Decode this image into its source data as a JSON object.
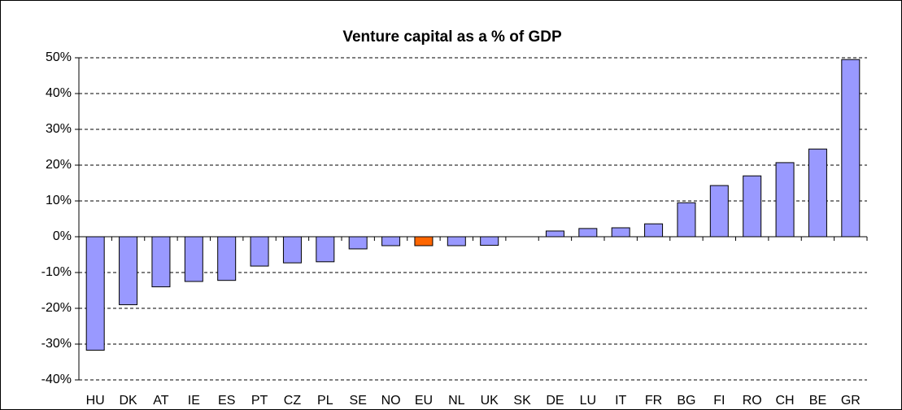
{
  "chart_data": {
    "type": "bar",
    "title": "Venture capital as a % of GDP",
    "categories": [
      "HU",
      "DK",
      "AT",
      "IE",
      "ES",
      "PT",
      "CZ",
      "PL",
      "SE",
      "NO",
      "EU",
      "NL",
      "UK",
      "SK",
      "DE",
      "LU",
      "IT",
      "FR",
      "BG",
      "FI",
      "RO",
      "CH",
      "BE",
      "GR"
    ],
    "values": [
      -31.7,
      -19,
      -14,
      -12.5,
      -12.2,
      -8.2,
      -7.3,
      -7,
      -3.4,
      -2.5,
      -2.5,
      -2.5,
      -2.4,
      0,
      1.6,
      2.3,
      2.5,
      3.6,
      9.5,
      14.3,
      17,
      20.7,
      24.5,
      49.5
    ],
    "colors": [
      "#9999ff",
      "#9999ff",
      "#9999ff",
      "#9999ff",
      "#9999ff",
      "#9999ff",
      "#9999ff",
      "#9999ff",
      "#9999ff",
      "#9999ff",
      "#ff6600",
      "#9999ff",
      "#9999ff",
      "#9999ff",
      "#9999ff",
      "#9999ff",
      "#9999ff",
      "#9999ff",
      "#9999ff",
      "#9999ff",
      "#9999ff",
      "#9999ff",
      "#9999ff",
      "#9999ff"
    ],
    "ylim": [
      -40,
      50
    ],
    "yticks": [
      {
        "value": -40,
        "label": "-40%"
      },
      {
        "value": -30,
        "label": "-30%"
      },
      {
        "value": -20,
        "label": "-20%"
      },
      {
        "value": -10,
        "label": "-10%"
      },
      {
        "value": 0,
        "label": "0%"
      },
      {
        "value": 10,
        "label": "10%"
      },
      {
        "value": 20,
        "label": "20%"
      },
      {
        "value": 30,
        "label": "30%"
      },
      {
        "value": 40,
        "label": "40%"
      },
      {
        "value": 50,
        "label": "50%"
      }
    ],
    "grid": true
  }
}
